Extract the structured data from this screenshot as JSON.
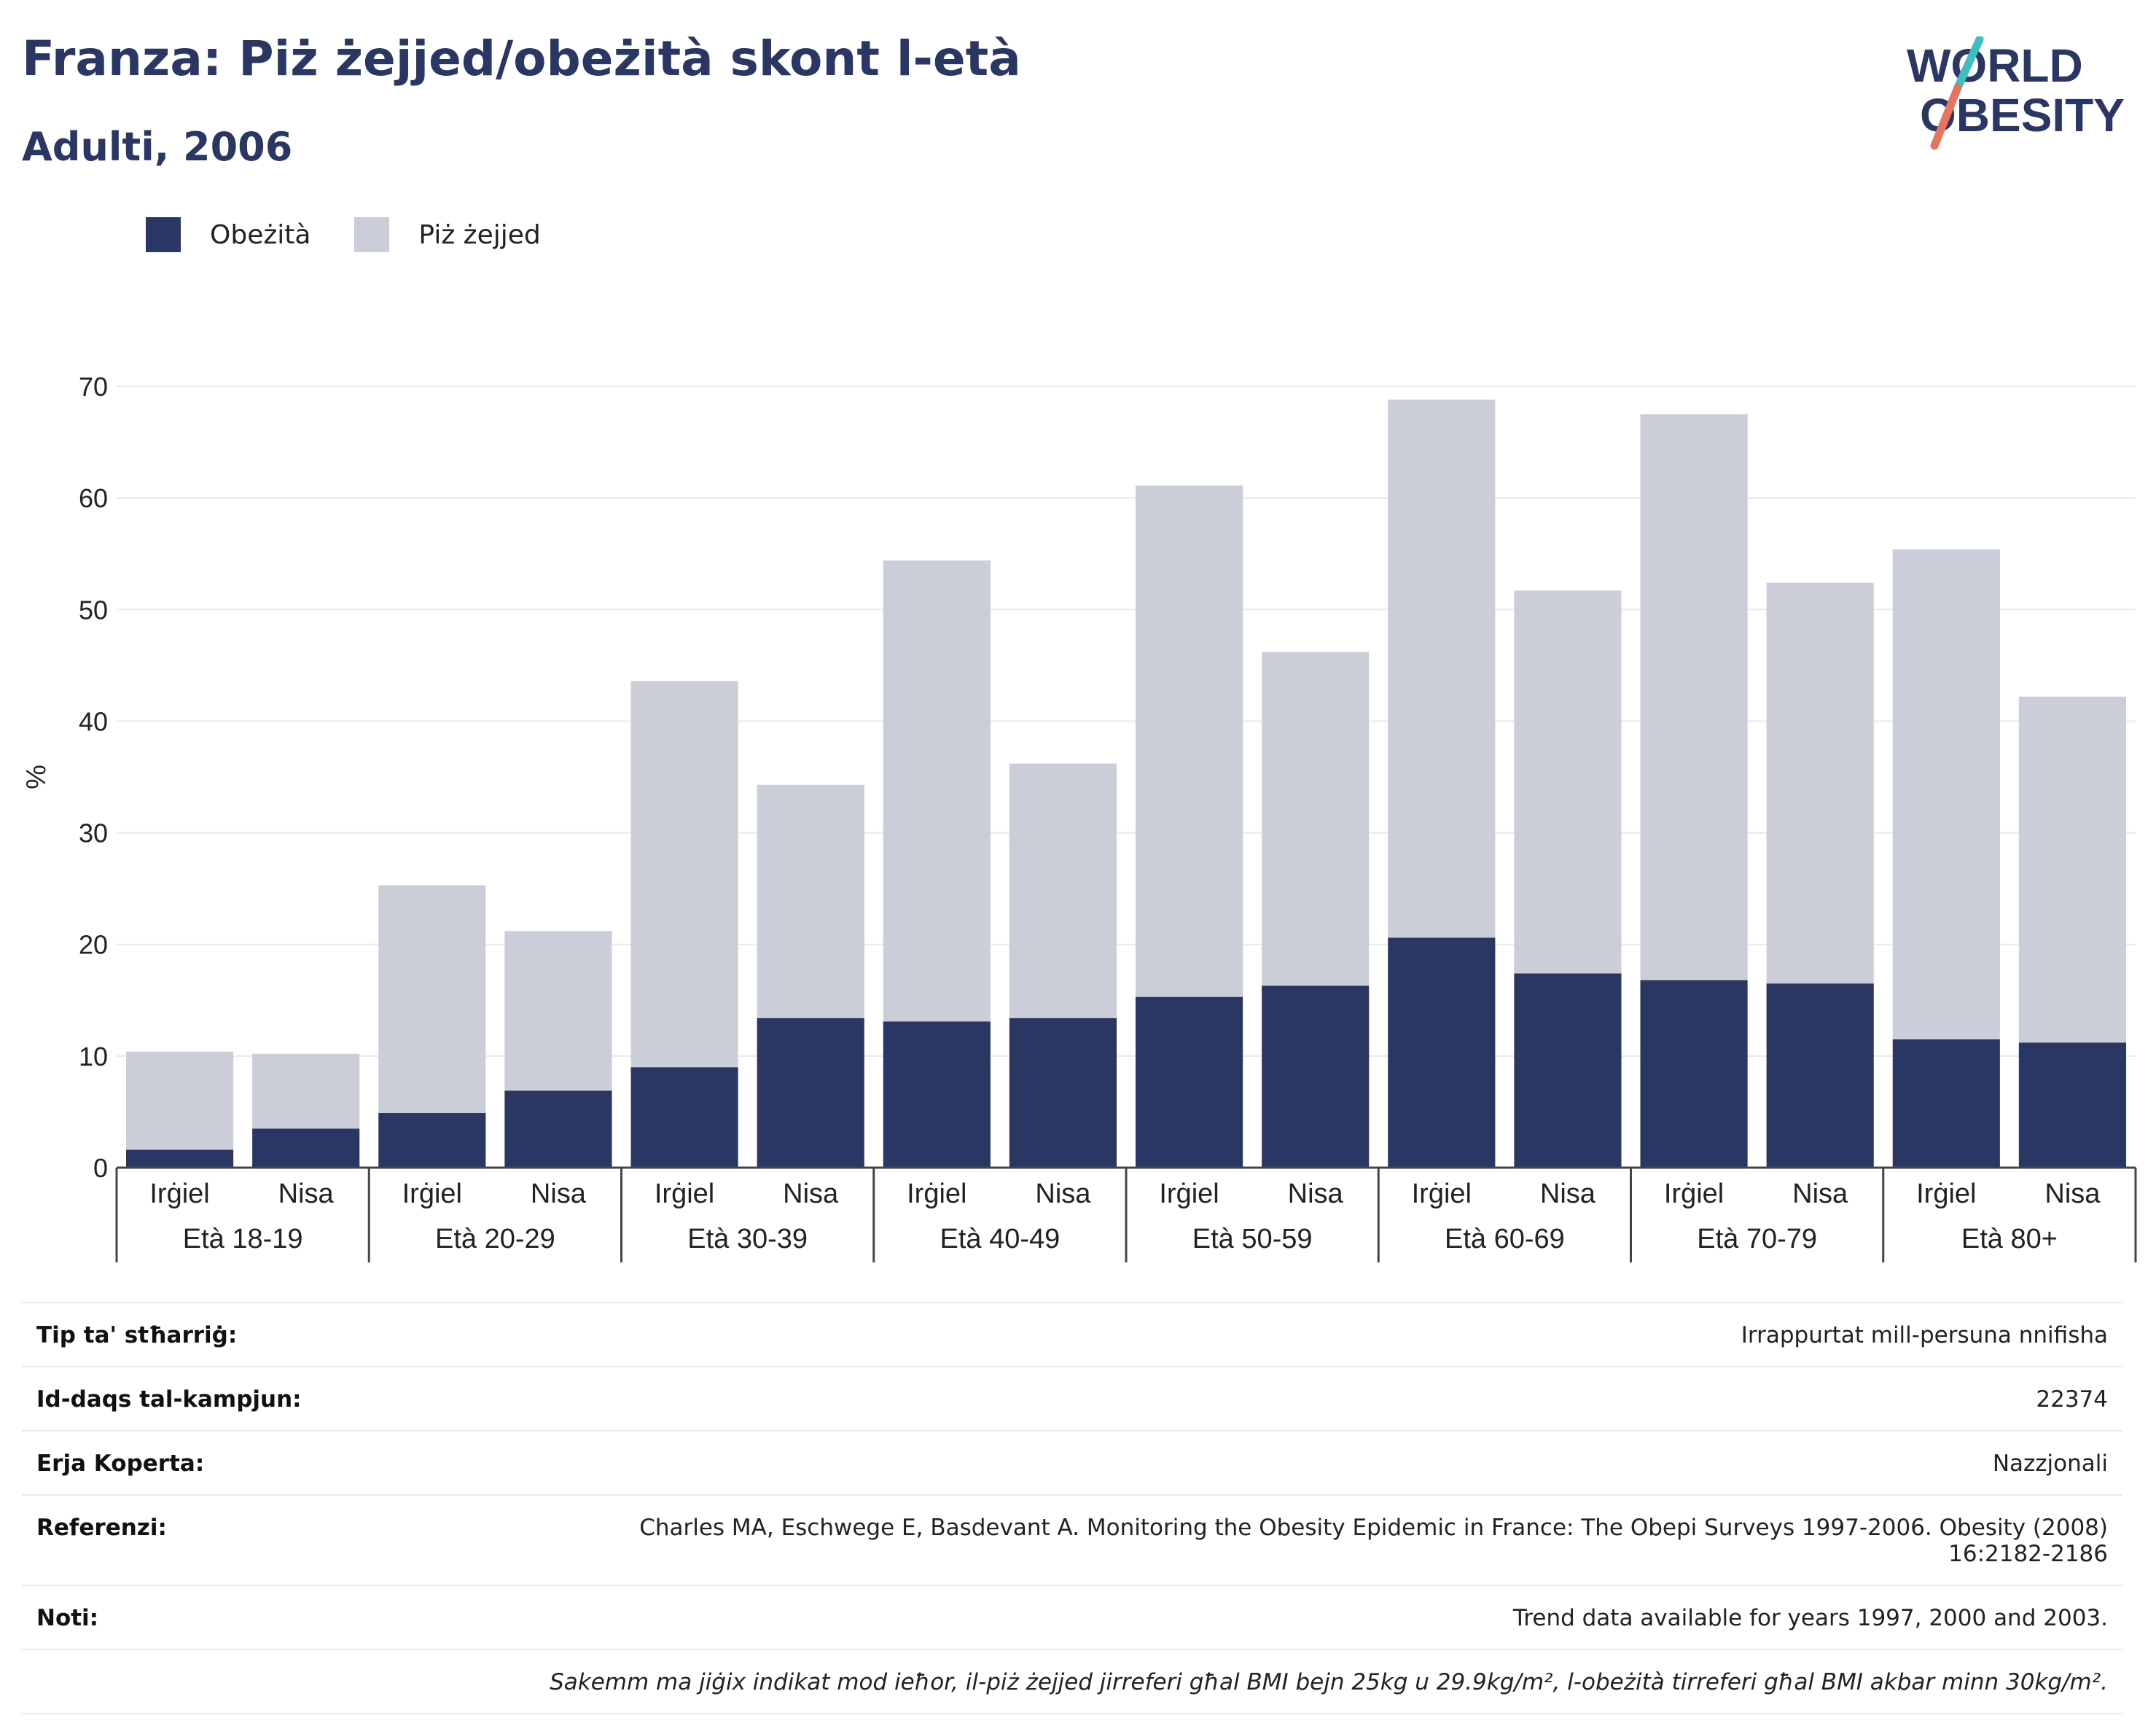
{
  "header": {
    "title": "Franza: Piż żejjed/obeżità skont l-età",
    "subtitle": "Adulti, 2006"
  },
  "logo": {
    "line1": "WORLD",
    "line2": "OBESITY"
  },
  "colors": {
    "obesity": "#2a3663",
    "overweight": "#cbcdd8",
    "accent_red": "#e8735f",
    "accent_teal": "#3fbfbf"
  },
  "legend": [
    {
      "label": "Obeżità",
      "color": "#2a3663"
    },
    {
      "label": "Piż żejjed",
      "color": "#cbcdd8"
    }
  ],
  "chart_data": {
    "type": "bar",
    "stacked": true,
    "ylabel": "%",
    "ylim": [
      0,
      70
    ],
    "yticks": [
      0,
      10,
      20,
      30,
      40,
      50,
      60,
      70
    ],
    "grid": true,
    "legend_position": "top-left",
    "groups": [
      "Età 18-19",
      "Età 20-29",
      "Età 30-39",
      "Età 40-49",
      "Età 50-59",
      "Età 60-69",
      "Età 70-79",
      "Età 80+"
    ],
    "sexes": [
      "Irġiel",
      "Nisa"
    ],
    "series": [
      {
        "name": "Obeżità",
        "values": [
          1.6,
          3.5,
          4.9,
          6.9,
          9.0,
          13.4,
          13.1,
          13.4,
          15.3,
          16.3,
          20.6,
          17.4,
          16.8,
          16.5,
          11.5,
          11.2
        ]
      },
      {
        "name": "Piż żejjed",
        "values": [
          8.8,
          6.7,
          20.4,
          14.3,
          34.6,
          20.9,
          41.3,
          22.8,
          45.8,
          29.9,
          48.2,
          34.3,
          50.7,
          35.9,
          43.9,
          31.0
        ]
      }
    ]
  },
  "info_table": [
    {
      "label": "Tip ta' stħarriġ:",
      "value": "Irrappurtat mill-persuna nnifisha"
    },
    {
      "label": "Id-daqs tal-kampjun:",
      "value": "22374"
    },
    {
      "label": "Erja Koperta:",
      "value": "Nazzjonali"
    },
    {
      "label": "Referenzi:",
      "value": "Charles MA, Eschwege E, Basdevant A. Monitoring the Obesity Epidemic in France: The Obepi Surveys 1997-2006. Obesity (2008) 16:2182-2186"
    },
    {
      "label": "Noti:",
      "value": "Trend data available for years 1997, 2000 and 2003."
    }
  ],
  "footnote": "Sakemm ma jiġix indikat mod ieħor, il-piż żejjed jirreferi għal BMI bejn 25kg u 29.9kg/m², l-obeżità tirreferi għal BMI akbar minn 30kg/m²."
}
